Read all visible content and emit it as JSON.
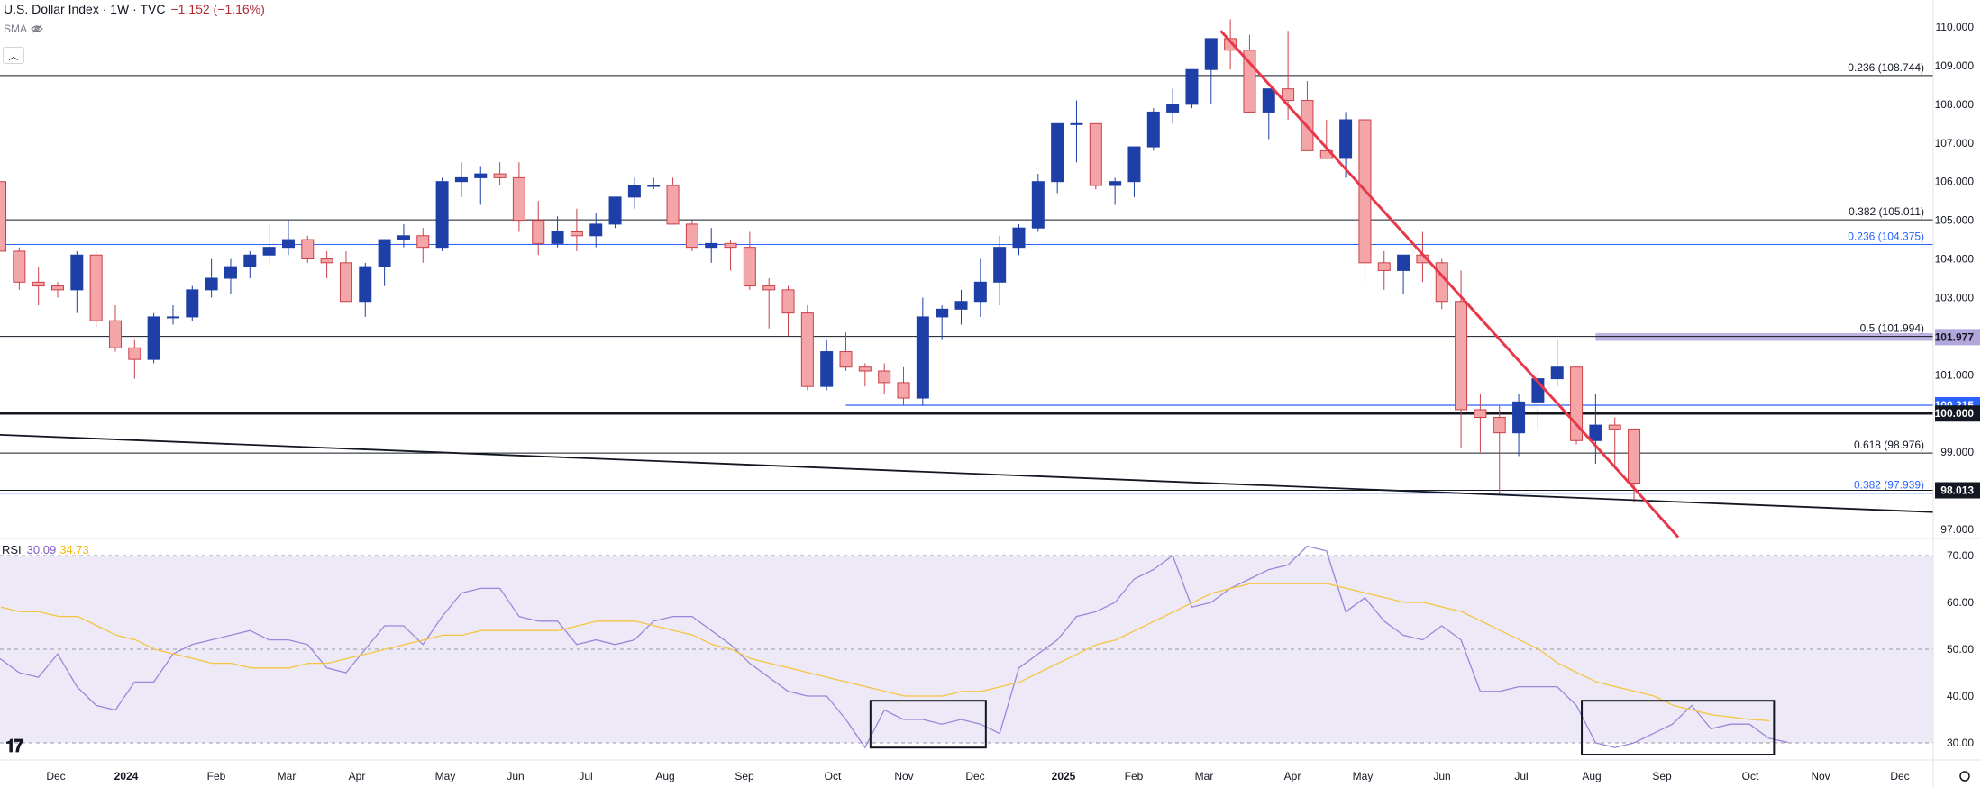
{
  "header": {
    "title": "U.S. Dollar Index · 1W · TVC",
    "change": "−1.152 (−1.16%)",
    "sma_label": "SMA"
  },
  "rsi_header": {
    "label": "RSI",
    "value1": "30.09",
    "value2": "34.73"
  },
  "colors": {
    "bull": "#1e3ea8",
    "bear_fill": "#f4a5a7",
    "bear_edge": "#c94148",
    "resistance": "#e8394a",
    "fib_blue": "#2962ff",
    "rsi": "#9b87d9",
    "rsi_ma": "#f5c542",
    "rsi_band": "#ede9f7"
  },
  "chart_data": [
    {
      "type": "candlestick",
      "title": "U.S. Dollar Index · 1W · TVC",
      "ylim": [
        96.8,
        110.3
      ],
      "y_ticks": [
        "110.000",
        "109.000",
        "108.000",
        "107.000",
        "106.000",
        "105.000",
        "104.000",
        "103.000",
        "101.000",
        "99.000",
        "97.000"
      ],
      "x_labels": [
        "Dec",
        "2024",
        "Feb",
        "Mar",
        "Apr",
        "May",
        "Jun",
        "Jul",
        "Aug",
        "Sep",
        "Oct",
        "Nov",
        "Dec",
        "2025",
        "Feb",
        "Mar",
        "Apr",
        "May",
        "Jun",
        "Jul",
        "Aug",
        "Sep",
        "Oct",
        "Nov",
        "Dec"
      ],
      "candles": [
        [
          106.0,
          106.0,
          104.2,
          104.2
        ],
        [
          104.2,
          104.3,
          103.2,
          103.4
        ],
        [
          103.4,
          103.8,
          102.8,
          103.3
        ],
        [
          103.3,
          103.4,
          103.0,
          103.2
        ],
        [
          103.2,
          104.2,
          102.6,
          104.1
        ],
        [
          104.1,
          104.2,
          102.2,
          102.4
        ],
        [
          102.4,
          102.8,
          101.6,
          101.7
        ],
        [
          101.7,
          101.9,
          100.9,
          101.4
        ],
        [
          101.4,
          102.6,
          101.3,
          102.5
        ],
        [
          102.5,
          102.8,
          102.3,
          102.5
        ],
        [
          102.5,
          103.3,
          102.4,
          103.2
        ],
        [
          103.2,
          104.0,
          103.0,
          103.5
        ],
        [
          103.5,
          104.0,
          103.1,
          103.8
        ],
        [
          103.8,
          104.2,
          103.5,
          104.1
        ],
        [
          104.1,
          104.9,
          103.9,
          104.3
        ],
        [
          104.3,
          105.0,
          104.1,
          104.5
        ],
        [
          104.5,
          104.6,
          103.9,
          104.0
        ],
        [
          104.0,
          104.2,
          103.5,
          103.9
        ],
        [
          103.9,
          104.2,
          102.9,
          102.9
        ],
        [
          102.9,
          103.9,
          102.5,
          103.8
        ],
        [
          103.8,
          104.5,
          103.3,
          104.5
        ],
        [
          104.5,
          104.9,
          104.3,
          104.6
        ],
        [
          104.6,
          104.8,
          103.9,
          104.3
        ],
        [
          104.3,
          106.1,
          104.2,
          106.0
        ],
        [
          106.0,
          106.5,
          105.6,
          106.1
        ],
        [
          106.1,
          106.4,
          105.4,
          106.2
        ],
        [
          106.2,
          106.5,
          105.9,
          106.1
        ],
        [
          106.1,
          106.5,
          104.7,
          105.0
        ],
        [
          105.0,
          105.5,
          104.1,
          104.4
        ],
        [
          104.4,
          105.1,
          104.3,
          104.7
        ],
        [
          104.7,
          105.3,
          104.2,
          104.6
        ],
        [
          104.6,
          105.2,
          104.3,
          104.9
        ],
        [
          104.9,
          105.6,
          104.8,
          105.6
        ],
        [
          105.6,
          106.1,
          105.3,
          105.9
        ],
        [
          105.9,
          106.1,
          105.8,
          105.9
        ],
        [
          105.9,
          106.1,
          104.9,
          104.9
        ],
        [
          104.9,
          105.0,
          104.2,
          104.3
        ],
        [
          104.3,
          104.8,
          103.9,
          104.4
        ],
        [
          104.4,
          104.5,
          103.7,
          104.3
        ],
        [
          104.3,
          104.7,
          103.2,
          103.3
        ],
        [
          103.3,
          103.5,
          102.2,
          103.2
        ],
        [
          103.2,
          103.3,
          102.0,
          102.6
        ],
        [
          102.6,
          102.8,
          100.6,
          100.7
        ],
        [
          100.7,
          101.9,
          100.6,
          101.6
        ],
        [
          101.6,
          102.1,
          101.1,
          101.2
        ],
        [
          101.2,
          101.3,
          100.7,
          101.1
        ],
        [
          101.1,
          101.3,
          100.5,
          100.8
        ],
        [
          100.8,
          101.2,
          100.2,
          100.4
        ],
        [
          100.4,
          103.0,
          100.2,
          102.5
        ],
        [
          102.5,
          102.8,
          101.9,
          102.7
        ],
        [
          102.7,
          103.2,
          102.3,
          102.9
        ],
        [
          102.9,
          104.0,
          102.5,
          103.4
        ],
        [
          103.4,
          104.6,
          102.8,
          104.3
        ],
        [
          104.3,
          104.9,
          104.1,
          104.8
        ],
        [
          104.8,
          106.2,
          104.7,
          106.0
        ],
        [
          106.0,
          107.5,
          105.7,
          107.5
        ],
        [
          107.5,
          108.1,
          106.5,
          107.5
        ],
        [
          107.5,
          107.5,
          105.8,
          105.9
        ],
        [
          105.9,
          106.1,
          105.4,
          106.0
        ],
        [
          106.0,
          106.9,
          105.6,
          106.9
        ],
        [
          106.9,
          107.9,
          106.8,
          107.8
        ],
        [
          107.8,
          108.4,
          107.5,
          108.0
        ],
        [
          108.0,
          108.8,
          107.9,
          108.9
        ],
        [
          108.9,
          109.6,
          108.0,
          109.7
        ],
        [
          109.7,
          110.2,
          108.9,
          109.4
        ],
        [
          109.4,
          109.8,
          107.8,
          107.8
        ],
        [
          107.8,
          108.4,
          107.1,
          108.4
        ],
        [
          108.4,
          109.9,
          107.6,
          108.1
        ],
        [
          108.1,
          108.6,
          106.8,
          106.8
        ],
        [
          106.8,
          107.6,
          106.6,
          106.6
        ],
        [
          106.6,
          107.8,
          106.1,
          107.6
        ],
        [
          107.6,
          107.6,
          103.4,
          103.9
        ],
        [
          103.9,
          104.2,
          103.2,
          103.7
        ],
        [
          103.7,
          104.1,
          103.1,
          104.1
        ],
        [
          104.1,
          104.7,
          103.4,
          103.9
        ],
        [
          103.9,
          104.0,
          102.7,
          102.9
        ],
        [
          102.9,
          103.7,
          99.1,
          100.1
        ],
        [
          100.1,
          100.5,
          99.0,
          99.9
        ],
        [
          99.9,
          100.2,
          97.9,
          99.5
        ],
        [
          99.5,
          100.5,
          98.9,
          100.3
        ],
        [
          100.3,
          101.1,
          99.6,
          100.9
        ],
        [
          100.9,
          101.9,
          100.7,
          101.2
        ],
        [
          101.2,
          101.2,
          99.2,
          99.3
        ],
        [
          99.3,
          100.5,
          98.7,
          99.7
        ],
        [
          99.7,
          99.9,
          98.6,
          99.6
        ],
        [
          99.6,
          99.6,
          97.7,
          98.2
        ]
      ],
      "horizontal_levels": [
        {
          "label": "0.236 (108.744)",
          "value": 108.744,
          "color": "#131722"
        },
        {
          "label": "0.382 (105.011)",
          "value": 105.011,
          "color": "#131722"
        },
        {
          "label": "0.236 (104.375)",
          "value": 104.375,
          "color": "#2962ff"
        },
        {
          "label": "0.5 (101.994)",
          "value": 101.994,
          "color": "#131722"
        },
        {
          "label": "0.618 (98.976)",
          "value": 98.976,
          "color": "#131722"
        },
        {
          "label": "0.382 (97.939)",
          "value": 97.939,
          "color": "#2962ff"
        }
      ],
      "price_tags": [
        {
          "label": "101.977",
          "value": 101.977,
          "style": "zone"
        },
        {
          "label": "100.215",
          "value": 100.215,
          "style": "blue"
        },
        {
          "label": "100.000",
          "value": 100.0,
          "style": "black"
        },
        {
          "label": "98.013",
          "value": 98.013,
          "style": "black"
        }
      ],
      "zone": {
        "from": 101.88,
        "to": 102.08,
        "start_index": 83
      },
      "support_100_215": {
        "value": 100.215,
        "start_index": 44
      },
      "trendline_black": {
        "start_value": 99.45,
        "end_value": 97.45
      },
      "trendline_red": {
        "start_index": 63.5,
        "start_value": 109.9,
        "end_index": 87.3,
        "end_value": 96.8
      }
    },
    {
      "type": "line",
      "title": "RSI",
      "ylim": [
        28,
        72
      ],
      "y_ticks": [
        "70.00",
        "60.00",
        "50.00",
        "40.00",
        "30.00"
      ],
      "band": [
        30,
        70
      ],
      "dashed_levels": [
        30,
        50,
        70
      ],
      "series": [
        {
          "name": "30.09",
          "values": [
            48,
            45,
            44,
            49,
            42,
            38,
            37,
            43,
            43,
            49,
            51,
            52,
            53,
            54,
            52,
            52,
            51,
            46,
            45,
            50,
            55,
            55,
            51,
            57,
            62,
            63,
            63,
            57,
            56,
            56,
            51,
            52,
            51,
            52,
            56,
            57,
            57,
            54,
            51,
            47,
            44,
            41,
            40,
            40,
            35,
            29,
            37,
            35,
            35,
            34,
            35,
            34,
            32,
            46,
            49,
            52,
            57,
            58,
            60,
            65,
            67,
            70,
            59,
            60,
            63,
            65,
            67,
            68,
            72,
            71,
            58,
            61,
            56,
            53,
            52,
            55,
            52,
            41,
            41,
            42,
            42,
            42,
            38,
            30,
            29,
            30,
            32,
            34,
            38,
            33,
            34,
            34,
            31,
            30.09
          ]
        },
        {
          "name": "34.73",
          "values": [
            59,
            58,
            58,
            57,
            57,
            55,
            53,
            52,
            50,
            49,
            48,
            47,
            47,
            46,
            46,
            46,
            47,
            47,
            48,
            49,
            50,
            51,
            52,
            53,
            53,
            54,
            54,
            54,
            54,
            54,
            55,
            56,
            56,
            56,
            55,
            54,
            53,
            51,
            50,
            48,
            47,
            46,
            45,
            44,
            43,
            42,
            41,
            40,
            40,
            40,
            41,
            41,
            42,
            43,
            45,
            47,
            49,
            51,
            52,
            54,
            56,
            58,
            60,
            62,
            63,
            64,
            64,
            64,
            64,
            64,
            63,
            62,
            61,
            60,
            60,
            59,
            58,
            56,
            54,
            52,
            50,
            47,
            45,
            43,
            42,
            41,
            40,
            38,
            37,
            36,
            35.5,
            35,
            34.73
          ]
        }
      ],
      "annotation_boxes": [
        {
          "from_index": 45,
          "to_index": 51,
          "y_top": 39,
          "y_bottom": 29
        },
        {
          "from_index": 82,
          "to_index": 92,
          "y_top": 39,
          "y_bottom": 27.5
        }
      ]
    }
  ]
}
